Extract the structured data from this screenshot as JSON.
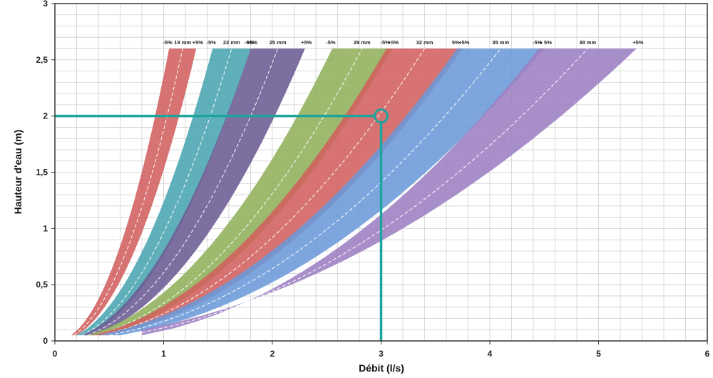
{
  "chart_data": {
    "type": "area",
    "title": "",
    "xlabel": "Débit (l/s)",
    "ylabel": "Hauteur d'eau (m)",
    "xlim": [
      0,
      6
    ],
    "ylim": [
      0,
      3
    ],
    "x_ticks": [
      "0",
      "1",
      "2",
      "3",
      "4",
      "5",
      "6"
    ],
    "y_ticks": [
      "0",
      "0,5",
      "1",
      "1,5",
      "2",
      "2,5",
      "3"
    ],
    "grid": true,
    "series": [
      {
        "name": "19 mm",
        "minus_label": "-5%",
        "plus_label": "+5%",
        "color": "#d2605f",
        "min_edge": [
          [
            0.15,
            0.05
          ],
          [
            1.05,
            2.6
          ]
        ],
        "max_edge": [
          [
            0.2,
            0.05
          ],
          [
            1.3,
            2.6
          ]
        ]
      },
      {
        "name": "22 mm",
        "minus_label": "-5%",
        "plus_label": "+5%",
        "color": "#4aa5b2",
        "min_edge": [
          [
            0.2,
            0.05
          ],
          [
            1.45,
            2.6
          ]
        ],
        "max_edge": [
          [
            0.3,
            0.05
          ],
          [
            1.8,
            2.6
          ]
        ]
      },
      {
        "name": "25 mm",
        "minus_label": "-5%",
        "plus_label": "+5%",
        "color": "#6c5b94",
        "min_edge": [
          [
            0.25,
            0.05
          ],
          [
            1.8,
            2.6
          ]
        ],
        "max_edge": [
          [
            0.35,
            0.05
          ],
          [
            2.3,
            2.6
          ]
        ]
      },
      {
        "name": "29 mm",
        "minus_label": "-5%",
        "plus_label": "+5%",
        "color": "#8fb15a",
        "min_edge": [
          [
            0.3,
            0.05
          ],
          [
            2.55,
            2.6
          ]
        ],
        "max_edge": [
          [
            0.45,
            0.05
          ],
          [
            3.1,
            2.6
          ]
        ]
      },
      {
        "name": "32 mm",
        "minus_label": "-5%",
        "plus_label": "+5%",
        "color": "#d2605f",
        "min_edge": [
          [
            0.35,
            0.05
          ],
          [
            3.05,
            2.6
          ]
        ],
        "max_edge": [
          [
            0.5,
            0.05
          ],
          [
            3.75,
            2.6
          ]
        ]
      },
      {
        "name": "35 mm",
        "minus_label": "5%",
        "plus_label": "+ 5%",
        "color": "#6a9ad8",
        "min_edge": [
          [
            0.4,
            0.05
          ],
          [
            3.7,
            2.6
          ]
        ],
        "max_edge": [
          [
            0.6,
            0.05
          ],
          [
            4.5,
            2.6
          ]
        ]
      },
      {
        "name": "38 mm",
        "minus_label": "-5%",
        "plus_label": "+5%",
        "color": "#9d7fc3",
        "min_edge": [
          [
            0.8,
            0.05
          ],
          [
            4.45,
            2.6
          ]
        ],
        "max_edge": [
          [
            0.8,
            0.1
          ],
          [
            5.35,
            2.6
          ]
        ]
      }
    ],
    "annotation": {
      "point": [
        3,
        2
      ],
      "color": "#1da59d"
    }
  }
}
